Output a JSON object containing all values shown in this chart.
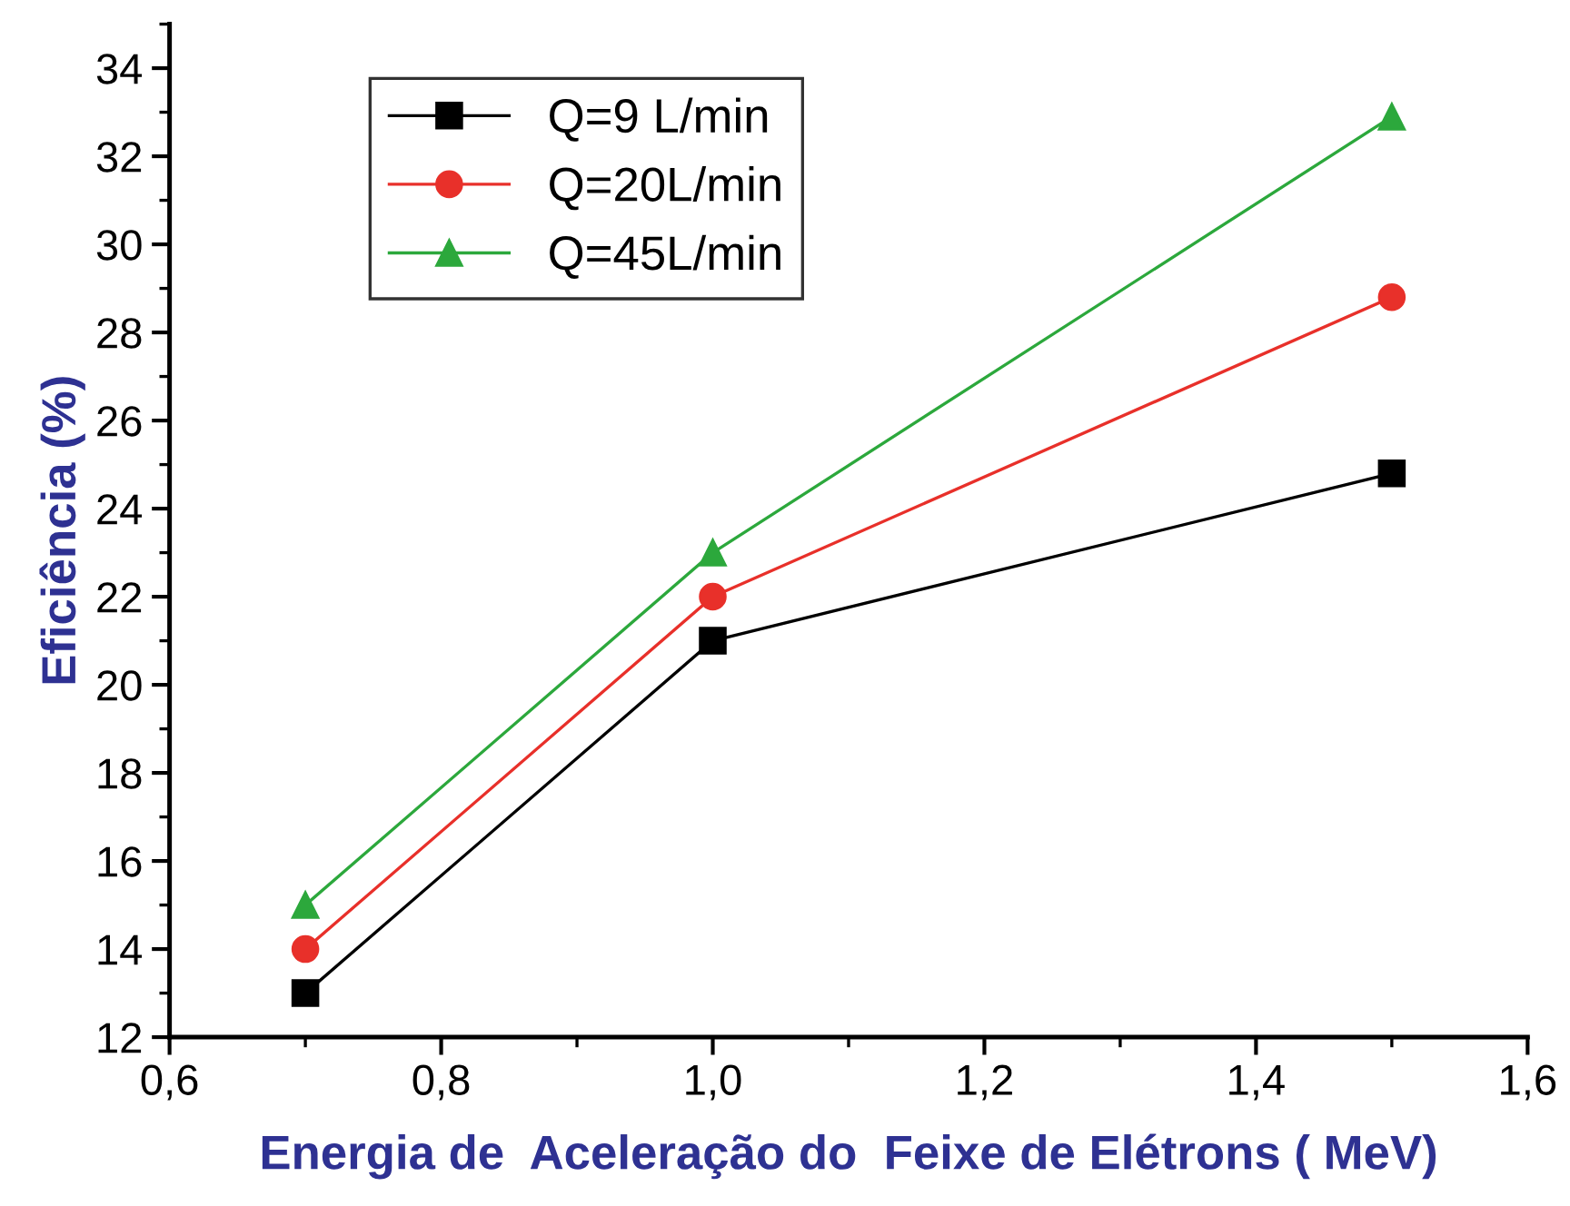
{
  "chart_data": {
    "type": "line",
    "xlabel": "Energia de  Aceleração do  Feixe de Elétrons ( MeV)",
    "ylabel": "Eficiência (%)",
    "x": [
      0.7,
      1.0,
      1.5
    ],
    "series": [
      {
        "name": "Q=9 L/min",
        "color": "#000000",
        "marker": "square",
        "values": [
          13,
          21,
          24.8
        ]
      },
      {
        "name": "Q=20L/min",
        "color": "#e8302a",
        "marker": "circle",
        "values": [
          14,
          22,
          28.8
        ]
      },
      {
        "name": "Q=45L/min",
        "color": "#2ca83c",
        "marker": "triangle",
        "values": [
          15,
          23,
          32.9
        ]
      }
    ],
    "xlim": [
      0.6,
      1.6
    ],
    "xticks": [
      {
        "value": 0.6,
        "label": "0,6"
      },
      {
        "value": 0.8,
        "label": "0,8"
      },
      {
        "value": 1.0,
        "label": "1,0"
      },
      {
        "value": 1.2,
        "label": "1,2"
      },
      {
        "value": 1.4,
        "label": "1,4"
      },
      {
        "value": 1.6,
        "label": "1,6"
      }
    ],
    "ylim": [
      12,
      35
    ],
    "yticks": [
      12,
      14,
      16,
      18,
      20,
      22,
      24,
      26,
      28,
      30,
      32,
      34
    ],
    "grid": false,
    "legend": "top left",
    "line_style": "solid"
  }
}
